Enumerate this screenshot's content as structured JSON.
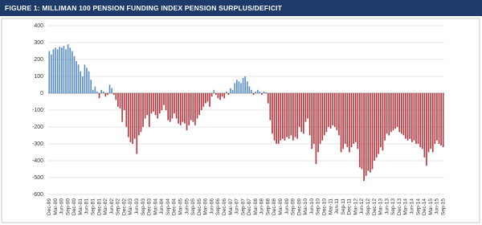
{
  "chart_data": {
    "type": "bar",
    "title": "FIGURE 1: MILLIMAN 100 PENSION FUNDING INDEX PENSION SURPLUS/DEFICIT",
    "categories": [
      "Dec-99",
      null,
      null,
      "Mar-00",
      null,
      null,
      "Jun-00",
      null,
      null,
      "Sep-00",
      null,
      null,
      "Dec-00",
      null,
      null,
      "Mar-01",
      null,
      null,
      "Jun-01",
      null,
      null,
      "Sep-01",
      null,
      null,
      "Dec-01",
      null,
      null,
      "Mar-02",
      null,
      null,
      "Jun-02",
      null,
      null,
      "Sep-02",
      null,
      null,
      "Dec-02",
      null,
      null,
      "Mar-03",
      null,
      null,
      "Jun-03",
      null,
      null,
      "Sep-03",
      null,
      null,
      "Dec-03",
      null,
      null,
      "Mar-04",
      null,
      null,
      "Jun-04",
      null,
      null,
      "Sep-04",
      null,
      null,
      "Dec-04",
      null,
      null,
      "Mar-05",
      null,
      null,
      "Jun-05",
      null,
      null,
      "Sep-05",
      null,
      null,
      "Dec-05",
      null,
      null,
      "Mar-06",
      null,
      null,
      "Jun-06",
      null,
      null,
      "Sep-06",
      null,
      null,
      "Dec-06",
      null,
      null,
      "Mar-07",
      null,
      null,
      "Jun-07",
      null,
      null,
      "Sep-07",
      null,
      null,
      "Dec-07",
      null,
      null,
      "Mar-08",
      null,
      null,
      "Jun-08",
      null,
      null,
      "Sep-08",
      null,
      null,
      "Dec-08",
      null,
      null,
      "Mar-09",
      null,
      null,
      "Jun-09",
      null,
      null,
      "Sep-09",
      null,
      null,
      "Dec-09",
      null,
      null,
      "Mar-10",
      null,
      null,
      "Jun-10",
      null,
      null,
      "Sep-10",
      null,
      null,
      "Dec-10",
      null,
      null,
      "Mar-11",
      null,
      null,
      "Jun-11",
      null,
      null,
      "Sep-11",
      null,
      null,
      "Dec-11",
      null,
      null,
      "Mar-12",
      null,
      null,
      "Jun-12",
      null,
      null,
      "Sep-12",
      null,
      null,
      "Dec-12",
      null,
      null,
      "Mar-13",
      null,
      null,
      "Jun-13",
      null,
      null,
      "Sep-13",
      null,
      null,
      "Dec-13",
      null,
      null,
      "Mar-14",
      null,
      null,
      "Jun-14",
      null,
      null,
      "Sep-14",
      null,
      null,
      "Dec-14",
      null,
      null,
      "Mar-15",
      null,
      null,
      "Jun-15",
      null,
      null,
      "Sep-15"
    ],
    "values": [
      250,
      230,
      260,
      270,
      260,
      275,
      270,
      280,
      260,
      290,
      270,
      250,
      220,
      190,
      170,
      130,
      100,
      170,
      150,
      130,
      80,
      20,
      40,
      10,
      -30,
      20,
      10,
      -20,
      -10,
      50,
      30,
      -10,
      -40,
      -80,
      -90,
      -170,
      -100,
      -200,
      -260,
      -290,
      -300,
      -270,
      -360,
      -250,
      -230,
      -200,
      -150,
      -130,
      -200,
      -120,
      -110,
      -130,
      -150,
      -120,
      -100,
      -70,
      -100,
      -160,
      -170,
      -150,
      -120,
      -150,
      -180,
      -190,
      -170,
      -180,
      -220,
      -190,
      -160,
      -170,
      -190,
      -150,
      -130,
      -100,
      -80,
      -60,
      -50,
      -80,
      -20,
      20,
      -10,
      -30,
      -40,
      -20,
      -30,
      10,
      -10,
      30,
      20,
      60,
      80,
      70,
      60,
      90,
      100,
      70,
      40,
      20,
      -10,
      10,
      20,
      10,
      -10,
      10,
      5,
      -60,
      -160,
      -240,
      -280,
      -300,
      -300,
      -280,
      -270,
      -280,
      -260,
      -270,
      -250,
      -280,
      -260,
      -270,
      -200,
      -230,
      -240,
      -170,
      -150,
      -250,
      -330,
      -300,
      -420,
      -350,
      -300,
      -280,
      -250,
      -230,
      -200,
      -210,
      -190,
      -200,
      -220,
      -250,
      -350,
      -330,
      -300,
      -320,
      -350,
      -320,
      -300,
      -290,
      -330,
      -440,
      -450,
      -520,
      -490,
      -460,
      -470,
      -450,
      -400,
      -380,
      -360,
      -320,
      -340,
      -280,
      -240,
      -250,
      -230,
      -220,
      -210,
      -200,
      -230,
      -240,
      -250,
      -270,
      -280,
      -270,
      -290,
      -280,
      -300,
      -300,
      -320,
      -330,
      -380,
      -430,
      -350,
      -330,
      -350,
      -300,
      -280,
      -300,
      -310,
      -320
    ],
    "colors": {
      "positive": "#5b8fc7",
      "negative": "#b7373f"
    },
    "ylim": [
      -600,
      400
    ],
    "yticks": [
      -600,
      -500,
      -400,
      -300,
      -200,
      -100,
      0,
      100,
      200,
      300,
      400
    ],
    "grid": true
  }
}
